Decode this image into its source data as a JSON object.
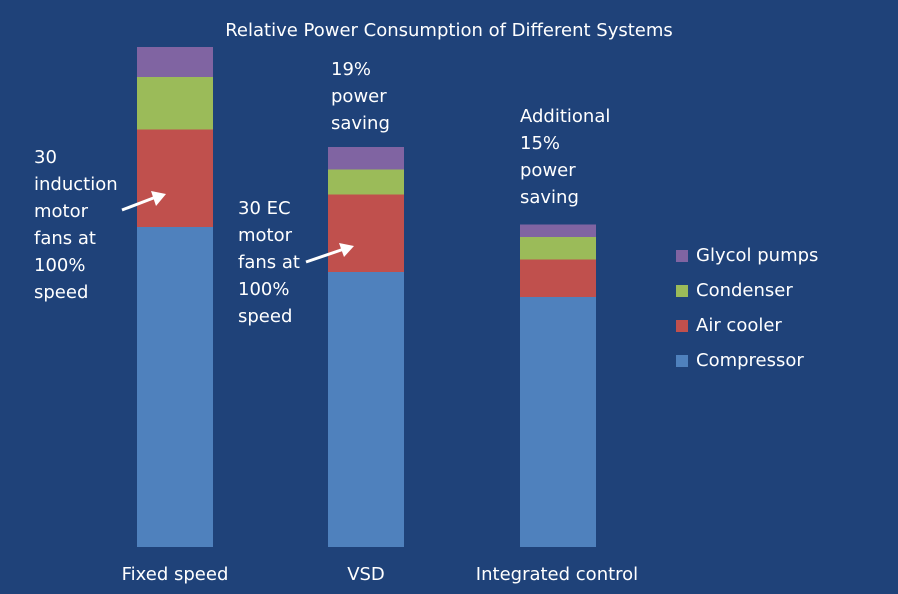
{
  "chart_data": {
    "type": "bar",
    "stacked": true,
    "title": "Relative Power Consumption of Different Systems",
    "categories": [
      "Fixed speed",
      "VSD",
      "Integrated control"
    ],
    "series": [
      {
        "name": "Compressor",
        "color": "#4f81bd",
        "values": [
          64,
          55,
          50
        ]
      },
      {
        "name": "Air cooler",
        "color": "#c0504d",
        "values": [
          19.5,
          15.5,
          7.5
        ]
      },
      {
        "name": "Condenser",
        "color": "#9bbb59",
        "values": [
          10.5,
          5,
          4.5
        ]
      },
      {
        "name": "Glycol pumps",
        "color": "#8064a2",
        "values": [
          6,
          4.5,
          2.5
        ]
      }
    ],
    "ylim": [
      0,
      100
    ],
    "grid": false,
    "legend_position": "right",
    "annotations": [
      {
        "id": "fixed_fans",
        "text": "30\ninduction\nmotor\nfans at\n100%\nspeed"
      },
      {
        "id": "vsd_fans",
        "text": "30 EC\nmotor\nfans at\n100%\nspeed"
      },
      {
        "id": "vsd_saving",
        "text": "19%\npower\nsaving"
      },
      {
        "id": "integrated_saving",
        "text": "Additional\n15%\npower\nsaving"
      }
    ]
  }
}
